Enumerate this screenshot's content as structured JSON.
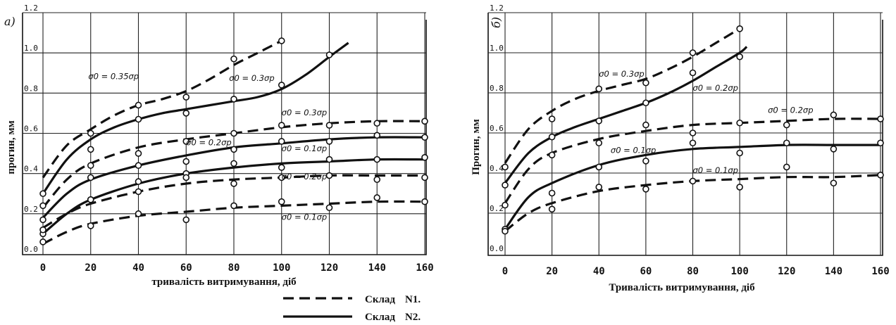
{
  "legend": [
    {
      "label": "Склад",
      "mark": "N1.",
      "style": "dashed"
    },
    {
      "label": "Склад",
      "mark": "N2.",
      "style": "solid"
    }
  ],
  "chart_data": [
    {
      "type": "line",
      "panel_label": "а)",
      "xlabel": "тривалість витримування, діб",
      "ylabel": "прогин, мм",
      "xlim": [
        0,
        160
      ],
      "ylim": [
        0.0,
        1.2
      ],
      "x_ticks": [
        "0",
        "20",
        "40",
        "60",
        "80",
        "100",
        "120",
        "140",
        "160"
      ],
      "y_ticks": [
        "0.0",
        "0.2",
        "0.4",
        "0.6",
        "0.8",
        "1.0",
        "1.2"
      ],
      "grid": true,
      "annotations": [
        {
          "text": "σ0 = 0.35σp",
          "x": 19,
          "y": 0.87
        },
        {
          "text": "σ0 = 0.3σp",
          "x": 78,
          "y": 0.86
        },
        {
          "text": "σ0 = 0.3σp",
          "x": 100,
          "y": 0.69
        },
        {
          "text": "σ0 = 0.2σp",
          "x": 60,
          "y": 0.54
        },
        {
          "text": "σ0 = 0.1σp",
          "x": 100,
          "y": 0.51
        },
        {
          "text": "σ0 = 0.2σp",
          "x": 100,
          "y": 0.37
        },
        {
          "text": "σ0 = 0.1σp",
          "x": 100,
          "y": 0.17
        }
      ],
      "series": [
        {
          "style": "dashed",
          "x": [
            0,
            10,
            20,
            30,
            40,
            50,
            60,
            70,
            80,
            90,
            100
          ],
          "y": [
            0.38,
            0.54,
            0.62,
            0.69,
            0.74,
            0.77,
            0.81,
            0.87,
            0.94,
            1.0,
            1.06
          ],
          "px": [
            20,
            40,
            60,
            80,
            100
          ],
          "py": [
            0.6,
            0.74,
            0.78,
            0.97,
            1.06
          ]
        },
        {
          "style": "solid",
          "x": [
            0,
            10,
            20,
            30,
            40,
            50,
            60,
            70,
            80,
            90,
            100,
            110,
            120,
            128
          ],
          "y": [
            0.3,
            0.47,
            0.57,
            0.63,
            0.67,
            0.7,
            0.72,
            0.74,
            0.76,
            0.78,
            0.82,
            0.89,
            0.98,
            1.05
          ],
          "px": [
            0,
            20,
            40,
            60,
            80,
            100,
            120
          ],
          "py": [
            0.3,
            0.52,
            0.67,
            0.7,
            0.77,
            0.84,
            0.99
          ]
        },
        {
          "style": "dashed",
          "x": [
            0,
            10,
            20,
            40,
            60,
            80,
            100,
            120,
            140,
            160
          ],
          "y": [
            0.23,
            0.37,
            0.45,
            0.53,
            0.57,
            0.6,
            0.63,
            0.65,
            0.66,
            0.66
          ],
          "px": [
            0,
            20,
            40,
            60,
            80,
            100,
            120,
            140,
            160
          ],
          "py": [
            0.24,
            0.44,
            0.5,
            0.56,
            0.6,
            0.64,
            0.64,
            0.65,
            0.66
          ]
        },
        {
          "style": "solid",
          "x": [
            0,
            10,
            20,
            40,
            60,
            80,
            100,
            120,
            140,
            160
          ],
          "y": [
            0.18,
            0.3,
            0.37,
            0.44,
            0.49,
            0.53,
            0.55,
            0.57,
            0.58,
            0.58
          ],
          "px": [
            0,
            20,
            40,
            60,
            80,
            100,
            120,
            140,
            160
          ],
          "py": [
            0.17,
            0.38,
            0.44,
            0.46,
            0.52,
            0.56,
            0.56,
            0.59,
            0.58
          ]
        },
        {
          "style": "solid",
          "x": [
            0,
            10,
            20,
            40,
            60,
            80,
            100,
            120,
            140,
            160
          ],
          "y": [
            0.1,
            0.2,
            0.27,
            0.35,
            0.4,
            0.43,
            0.45,
            0.46,
            0.47,
            0.47
          ],
          "px": [
            0,
            20,
            40,
            60,
            80,
            100,
            120,
            140,
            160
          ],
          "py": [
            0.1,
            0.27,
            0.36,
            0.4,
            0.45,
            0.43,
            0.47,
            0.47,
            0.48
          ]
        },
        {
          "style": "dashed",
          "x": [
            0,
            10,
            20,
            40,
            60,
            80,
            100,
            120,
            140,
            160
          ],
          "y": [
            0.13,
            0.2,
            0.25,
            0.31,
            0.35,
            0.37,
            0.38,
            0.39,
            0.39,
            0.39
          ],
          "px": [
            0,
            20,
            40,
            60,
            80,
            100,
            120,
            140,
            160
          ],
          "py": [
            0.12,
            0.27,
            0.31,
            0.38,
            0.35,
            0.38,
            0.39,
            0.37,
            0.38
          ]
        },
        {
          "style": "dashed",
          "x": [
            0,
            10,
            20,
            40,
            60,
            80,
            100,
            120,
            140,
            160
          ],
          "y": [
            0.05,
            0.11,
            0.15,
            0.19,
            0.21,
            0.23,
            0.24,
            0.25,
            0.26,
            0.26
          ],
          "px": [
            0,
            20,
            40,
            60,
            80,
            100,
            120,
            140,
            160
          ],
          "py": [
            0.06,
            0.14,
            0.2,
            0.17,
            0.24,
            0.26,
            0.23,
            0.28,
            0.26
          ]
        }
      ]
    },
    {
      "type": "line",
      "panel_label": "б)",
      "xlabel": "Тривалість витримування, діб",
      "ylabel": "Прогин, мм",
      "xlim": [
        0,
        160
      ],
      "ylim": [
        0.0,
        1.2
      ],
      "x_ticks": [
        "0",
        "20",
        "40",
        "60",
        "80",
        "100",
        "120",
        "140",
        "160"
      ],
      "y_ticks": [
        "0.0",
        "0.2",
        "0.4",
        "0.6",
        "0.8",
        "1.0",
        "1.2"
      ],
      "grid": true,
      "annotations": [
        {
          "text": "σ0 = 0.3σp",
          "x": 40,
          "y": 0.88
        },
        {
          "text": "σ0 = 0.2σp",
          "x": 80,
          "y": 0.81
        },
        {
          "text": "σ0 = 0.2σp",
          "x": 112,
          "y": 0.7
        },
        {
          "text": "σ0 = 0.1σp",
          "x": 45,
          "y": 0.5
        },
        {
          "text": "σ0 = 0.1σp",
          "x": 80,
          "y": 0.4
        }
      ],
      "series": [
        {
          "style": "dashed",
          "x": [
            0,
            10,
            20,
            30,
            40,
            50,
            60,
            70,
            80,
            90,
            100
          ],
          "y": [
            0.45,
            0.62,
            0.71,
            0.77,
            0.81,
            0.84,
            0.87,
            0.92,
            0.98,
            1.05,
            1.12
          ],
          "px": [
            0,
            20,
            40,
            60,
            80,
            100
          ],
          "py": [
            0.43,
            0.67,
            0.82,
            0.85,
            1.0,
            1.12
          ]
        },
        {
          "style": "solid",
          "x": [
            0,
            10,
            20,
            30,
            40,
            50,
            60,
            70,
            80,
            90,
            100,
            103
          ],
          "y": [
            0.35,
            0.5,
            0.58,
            0.63,
            0.67,
            0.71,
            0.75,
            0.8,
            0.86,
            0.93,
            1.0,
            1.03
          ],
          "px": [
            0,
            20,
            40,
            60,
            80,
            100
          ],
          "py": [
            0.34,
            0.58,
            0.66,
            0.75,
            0.9,
            0.98
          ]
        },
        {
          "style": "dashed",
          "x": [
            0,
            10,
            20,
            40,
            60,
            80,
            100,
            120,
            140,
            160
          ],
          "y": [
            0.25,
            0.42,
            0.5,
            0.57,
            0.61,
            0.64,
            0.65,
            0.66,
            0.67,
            0.67
          ],
          "px": [
            0,
            20,
            40,
            60,
            80,
            100,
            120,
            140,
            160
          ],
          "py": [
            0.24,
            0.49,
            0.55,
            0.64,
            0.6,
            0.65,
            0.64,
            0.69,
            0.67
          ]
        },
        {
          "style": "solid",
          "x": [
            0,
            10,
            20,
            40,
            60,
            80,
            100,
            120,
            140,
            160
          ],
          "y": [
            0.12,
            0.28,
            0.35,
            0.44,
            0.49,
            0.52,
            0.53,
            0.54,
            0.54,
            0.54
          ],
          "px": [
            0,
            20,
            40,
            60,
            80,
            100,
            120,
            140,
            160
          ],
          "py": [
            0.12,
            0.3,
            0.43,
            0.46,
            0.55,
            0.5,
            0.55,
            0.52,
            0.55
          ]
        },
        {
          "style": "dashed",
          "x": [
            0,
            10,
            20,
            40,
            60,
            80,
            100,
            120,
            140,
            160
          ],
          "y": [
            0.11,
            0.2,
            0.25,
            0.31,
            0.34,
            0.36,
            0.37,
            0.38,
            0.38,
            0.39
          ],
          "px": [
            0,
            20,
            40,
            60,
            80,
            100,
            120,
            140,
            160
          ],
          "py": [
            0.11,
            0.22,
            0.33,
            0.32,
            0.36,
            0.33,
            0.43,
            0.35,
            0.39
          ]
        }
      ]
    }
  ]
}
